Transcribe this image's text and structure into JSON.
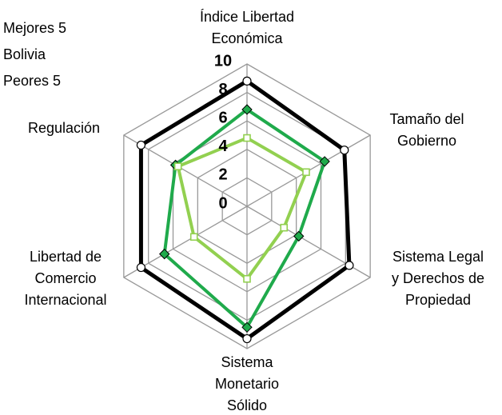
{
  "chart_data": {
    "type": "radar",
    "categories": [
      [
        "Índice Libertad",
        "Económica"
      ],
      [
        "Tamaño del",
        "Gobierno"
      ],
      [
        "Sistema Legal",
        "y Derechos de",
        "Propiedad"
      ],
      [
        "Sistema",
        "Monetario",
        "Sólido"
      ],
      [
        "Libertad de",
        "Comercio",
        "Internacional"
      ],
      [
        "Regulación"
      ]
    ],
    "series": [
      {
        "name": "Mejores 5",
        "color": "#000000",
        "values": [
          8.8,
          7.9,
          8.3,
          9.3,
          8.6,
          8.6
        ]
      },
      {
        "name": "Bolivia",
        "color": "#1faa4b",
        "values": [
          6.8,
          6.3,
          4.2,
          8.5,
          6.7,
          5.8
        ]
      },
      {
        "name": "Peores 5",
        "color": "#92d050",
        "values": [
          4.8,
          4.8,
          3.0,
          5.1,
          4.3,
          5.6
        ]
      }
    ],
    "rlim": [
      0,
      10
    ],
    "rticks": [
      0,
      2,
      4,
      6,
      8,
      10
    ],
    "grid": true
  }
}
